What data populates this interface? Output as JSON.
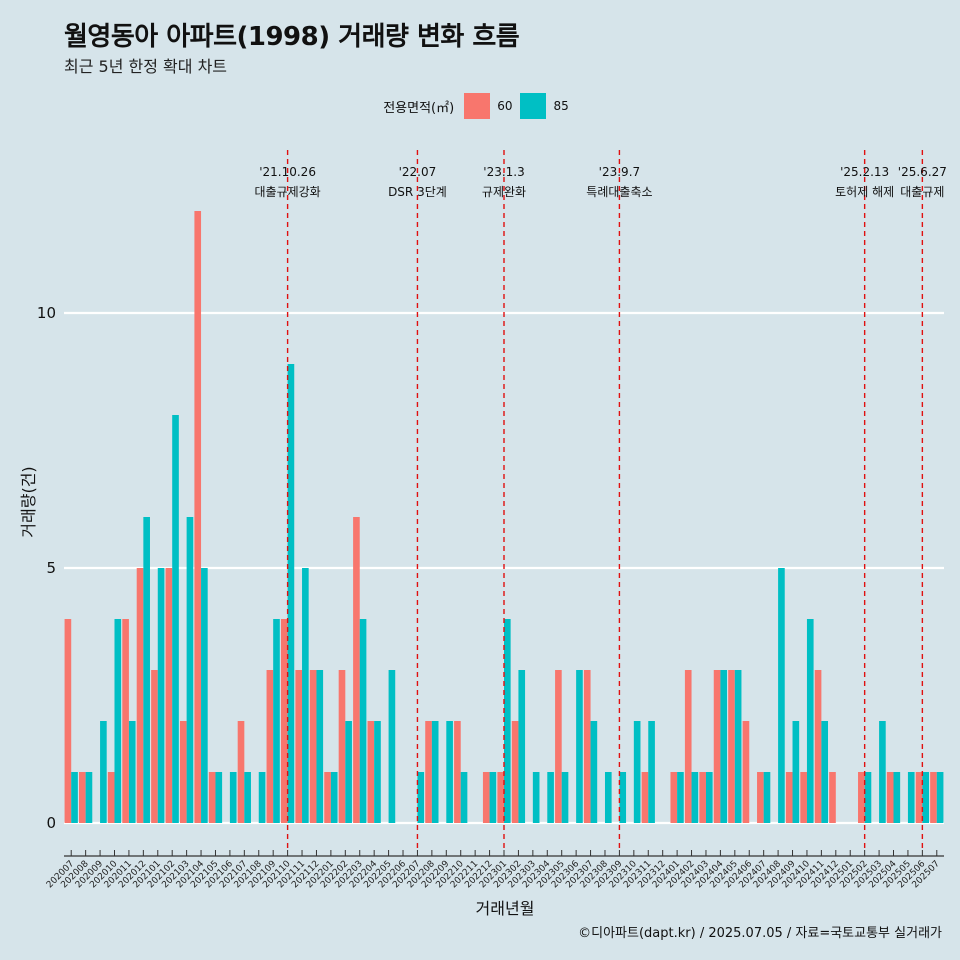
{
  "title": "월영동아 아파트(1998) 거래량 변화 흐름",
  "subtitle": "최근 5년 한정 확대 차트",
  "caption": "©디아파트(dapt.kr) / 2025.07.05 / 자료=국토교통부 실거래가",
  "legend": {
    "title": "전용면적(㎡)",
    "items": [
      {
        "label": "60",
        "color": "#f8766d"
      },
      {
        "label": "85",
        "color": "#00bfc4"
      }
    ]
  },
  "chart_data": {
    "type": "bar",
    "xlabel": "거래년월",
    "ylabel": "거래량(건)",
    "ylim": [
      0,
      12.5
    ],
    "yticks": [
      0,
      5,
      10
    ],
    "grid": true,
    "legend_position": "top",
    "categories": [
      "202007",
      "202008",
      "202009",
      "202010",
      "202011",
      "202012",
      "202101",
      "202102",
      "202103",
      "202104",
      "202105",
      "202106",
      "202107",
      "202108",
      "202109",
      "202110",
      "202111",
      "202112",
      "202201",
      "202202",
      "202203",
      "202204",
      "202205",
      "202206",
      "202207",
      "202208",
      "202209",
      "202210",
      "202211",
      "202212",
      "202301",
      "202302",
      "202303",
      "202304",
      "202305",
      "202306",
      "202307",
      "202308",
      "202309",
      "202310",
      "202311",
      "202312",
      "202401",
      "202402",
      "202403",
      "202404",
      "202405",
      "202406",
      "202407",
      "202408",
      "202409",
      "202410",
      "202411",
      "202412",
      "202501",
      "202502",
      "202503",
      "202504",
      "202505",
      "202506",
      "202507"
    ],
    "series": [
      {
        "name": "60",
        "color": "#f8766d",
        "values": [
          4,
          1,
          0,
          1,
          4,
          5,
          3,
          5,
          2,
          12,
          1,
          0,
          2,
          0,
          3,
          4,
          3,
          3,
          1,
          3,
          6,
          2,
          0,
          0,
          0,
          2,
          0,
          2,
          0,
          1,
          1,
          2,
          0,
          0,
          3,
          0,
          3,
          0,
          0,
          0,
          1,
          0,
          1,
          3,
          1,
          3,
          3,
          2,
          1,
          0,
          1,
          1,
          3,
          1,
          0,
          1,
          0,
          1,
          0,
          1,
          1
        ]
      },
      {
        "name": "85",
        "color": "#00bfc4",
        "values": [
          1,
          1,
          2,
          4,
          2,
          6,
          5,
          8,
          6,
          5,
          1,
          1,
          1,
          1,
          4,
          9,
          5,
          3,
          1,
          2,
          4,
          2,
          3,
          0,
          1,
          2,
          2,
          1,
          0,
          1,
          4,
          3,
          1,
          1,
          1,
          3,
          2,
          1,
          1,
          2,
          2,
          0,
          1,
          1,
          1,
          3,
          3,
          0,
          1,
          5,
          2,
          4,
          2,
          0,
          0,
          1,
          2,
          1,
          1,
          1,
          1
        ]
      }
    ],
    "annotations": [
      {
        "category": "202110",
        "date": "'21.10.26",
        "label": "대출규제강화"
      },
      {
        "category": "202207",
        "date": "'22.07",
        "label": "DSR 3단계"
      },
      {
        "category": "202301",
        "date": "'23.1.3",
        "label": "규제완화"
      },
      {
        "category": "202309",
        "date": "'23.9.7",
        "label": "특례대출축소"
      },
      {
        "category": "202502",
        "date": "'25.2.13",
        "label": "토허제 해제"
      },
      {
        "category": "202506",
        "date": "'25.6.27",
        "label": "대출규제"
      }
    ]
  }
}
